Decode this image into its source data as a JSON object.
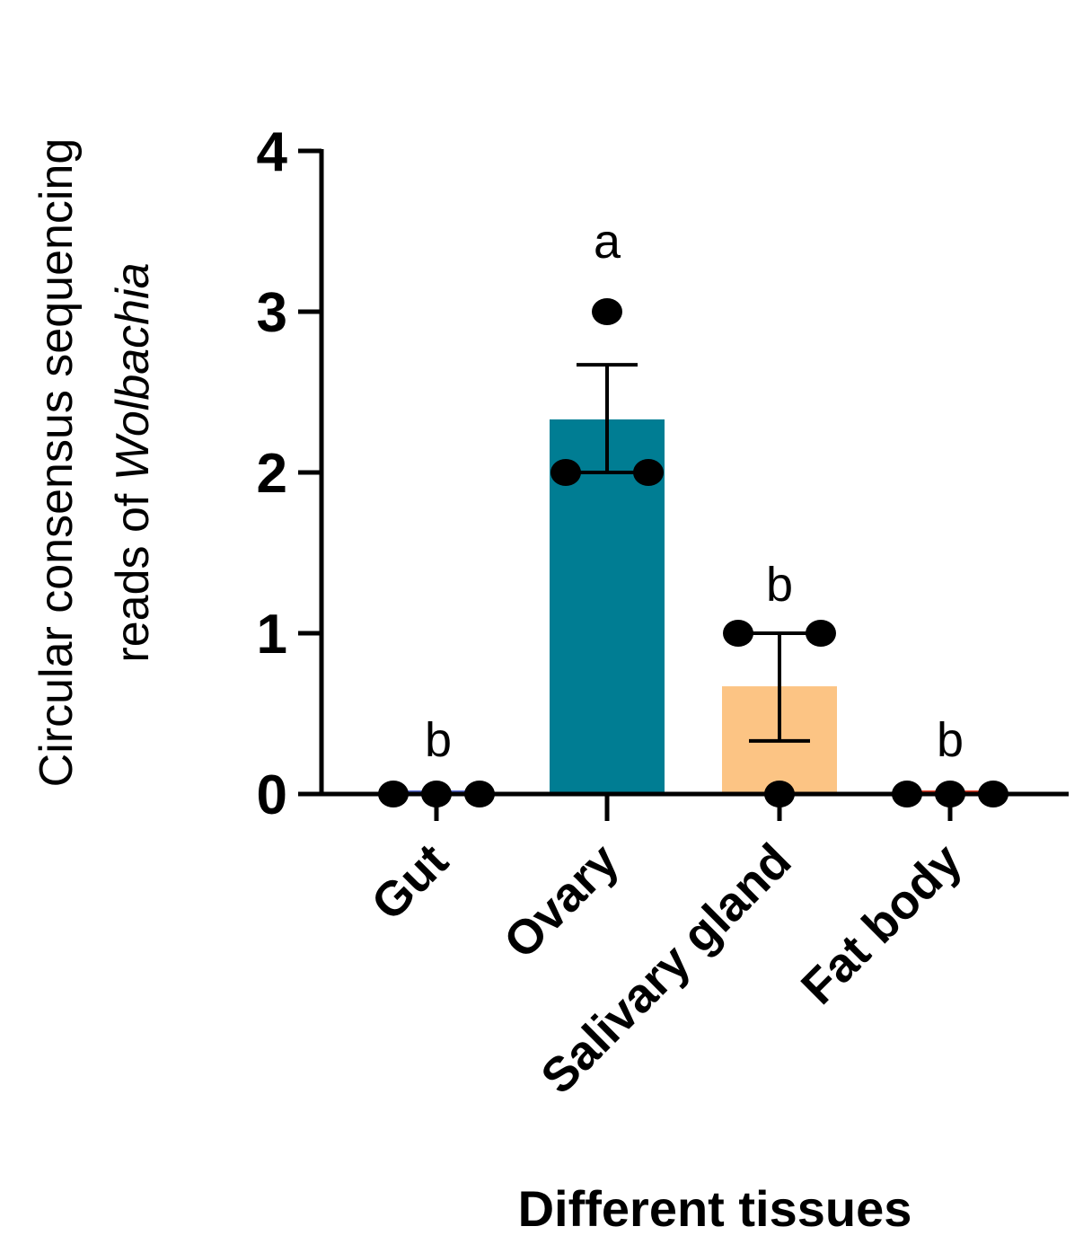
{
  "chart_data": {
    "type": "bar",
    "categories": [
      "Gut",
      "Ovary",
      "Salivary gland",
      "Fat body"
    ],
    "values": [
      0,
      2.33,
      0.67,
      0
    ],
    "error_upper": [
      0,
      2.67,
      1.0,
      0
    ],
    "error_lower": [
      0,
      2.0,
      0.33,
      0
    ],
    "points": [
      [
        0,
        0,
        0
      ],
      [
        3,
        2,
        2
      ],
      [
        1,
        1,
        0
      ],
      [
        0,
        0,
        0
      ]
    ],
    "significance": [
      "b",
      "a",
      "b",
      "b"
    ],
    "bar_colors": [
      "#5b6fd6",
      "#007d93",
      "#fcc484",
      "#e8412a"
    ],
    "ylim": [
      0,
      4
    ],
    "yticks": [
      "0",
      "1",
      "2",
      "3",
      "4"
    ],
    "xlabel": "Different tissues",
    "ylabel": {
      "line1": "Circular consensus sequencing",
      "line2_prefix": "reads of ",
      "line2_italic": "Wolbachia"
    },
    "grid": false
  }
}
